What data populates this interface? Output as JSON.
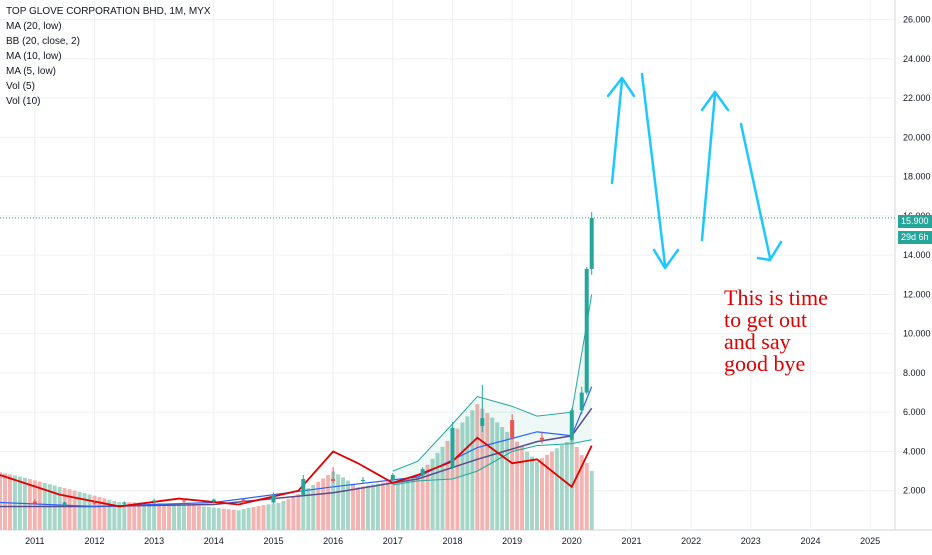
{
  "legend": {
    "title": "TOP GLOVE CORPORATION BHD, 1M, MYX",
    "items": [
      "MA (20, low)",
      "BB (20, close, 2)",
      "MA (10, low)",
      "MA (5, low)",
      "Vol (5)",
      "Vol (10)"
    ]
  },
  "price_axis": {
    "ticks": [
      "2.000",
      "4.000",
      "6.000",
      "8.000",
      "10.000",
      "12.000",
      "14.000",
      "16.000",
      "18.000",
      "20.000",
      "22.000",
      "24.000",
      "26.000"
    ],
    "last_price": "15.900",
    "countdown": "29d 6h"
  },
  "time_axis": {
    "ticks": [
      "2011",
      "2012",
      "2013",
      "2014",
      "2015",
      "2016",
      "2017",
      "2018",
      "2019",
      "2020",
      "2021",
      "2022",
      "2023",
      "2024",
      "2025"
    ]
  },
  "annotation": {
    "lines": [
      "This is time",
      "to get out",
      "and say",
      "good bye"
    ],
    "color": "#e00000"
  },
  "colors": {
    "up": "#26a69a",
    "down": "#ef5350",
    "ma20": "#5b4a8b",
    "ma10": "#2962ff",
    "ma5": "#e00000",
    "bb": "#26a69a",
    "arrows": "#1ec8ff",
    "grid": "#eef0f3"
  },
  "chart_data": {
    "type": "candlestick",
    "title": "TOP GLOVE CORPORATION BHD, 1M, MYX",
    "interval": "1M",
    "ylim": [
      0,
      27
    ],
    "xlim": [
      "2010-06",
      "2025-06"
    ],
    "grid": true,
    "last_close": 15.9,
    "candles": [
      {
        "x": "2011-01",
        "o": 1.45,
        "h": 1.55,
        "l": 1.3,
        "c": 1.35
      },
      {
        "x": "2011-07",
        "o": 1.3,
        "h": 1.45,
        "l": 1.2,
        "c": 1.4
      },
      {
        "x": "2012-01",
        "o": 1.4,
        "h": 1.5,
        "l": 1.3,
        "c": 1.35
      },
      {
        "x": "2012-07",
        "o": 1.35,
        "h": 1.45,
        "l": 1.25,
        "c": 1.4
      },
      {
        "x": "2013-01",
        "o": 1.45,
        "h": 1.6,
        "l": 1.35,
        "c": 1.5
      },
      {
        "x": "2013-07",
        "o": 1.5,
        "h": 1.6,
        "l": 1.35,
        "c": 1.45
      },
      {
        "x": "2014-01",
        "o": 1.45,
        "h": 1.6,
        "l": 1.35,
        "c": 1.55
      },
      {
        "x": "2014-07",
        "o": 1.55,
        "h": 1.6,
        "l": 1.35,
        "c": 1.4
      },
      {
        "x": "2015-01",
        "o": 1.4,
        "h": 1.9,
        "l": 1.35,
        "c": 1.8
      },
      {
        "x": "2015-07",
        "o": 1.8,
        "h": 2.8,
        "l": 1.75,
        "c": 2.6
      },
      {
        "x": "2016-01",
        "o": 2.6,
        "h": 3.2,
        "l": 2.4,
        "c": 2.5
      },
      {
        "x": "2016-07",
        "o": 2.5,
        "h": 2.7,
        "l": 2.4,
        "c": 2.55
      },
      {
        "x": "2017-01",
        "o": 2.55,
        "h": 2.9,
        "l": 2.5,
        "c": 2.8
      },
      {
        "x": "2017-07",
        "o": 2.8,
        "h": 3.2,
        "l": 2.7,
        "c": 3.1
      },
      {
        "x": "2018-01",
        "o": 3.2,
        "h": 5.5,
        "l": 3.1,
        "c": 5.2
      },
      {
        "x": "2018-07",
        "o": 5.3,
        "h": 7.4,
        "l": 5.0,
        "c": 5.7
      },
      {
        "x": "2019-01",
        "o": 5.6,
        "h": 5.9,
        "l": 4.6,
        "c": 4.7
      },
      {
        "x": "2019-07",
        "o": 4.7,
        "h": 5.0,
        "l": 4.4,
        "c": 4.6
      },
      {
        "x": "2020-01",
        "o": 4.6,
        "h": 6.2,
        "l": 4.5,
        "c": 6.1
      },
      {
        "x": "2020-03",
        "o": 6.1,
        "h": 7.3,
        "l": 5.9,
        "c": 7.0
      },
      {
        "x": "2020-04",
        "o": 7.0,
        "h": 13.4,
        "l": 6.9,
        "c": 13.3
      },
      {
        "x": "2020-05",
        "o": 13.3,
        "h": 16.2,
        "l": 13.0,
        "c": 15.9
      }
    ],
    "series": [
      {
        "name": "MA (20, low)",
        "x": [
          "2010-06",
          "2012-01",
          "2014-01",
          "2016-01",
          "2017-06",
          "2018-06",
          "2019-06",
          "2020-01",
          "2020-05"
        ],
        "values": [
          1.2,
          1.2,
          1.3,
          1.9,
          2.6,
          3.6,
          4.5,
          4.8,
          6.2
        ]
      },
      {
        "name": "MA (10, low)",
        "x": [
          "2010-06",
          "2012-01",
          "2014-01",
          "2016-01",
          "2017-06",
          "2018-06",
          "2019-06",
          "2020-01",
          "2020-05"
        ],
        "values": [
          1.4,
          1.2,
          1.4,
          2.2,
          2.7,
          4.2,
          5.0,
          4.8,
          7.3
        ]
      },
      {
        "name": "MA (5, low)",
        "x": [
          "2010-06",
          "2011-06",
          "2012-06",
          "2013-06",
          "2014-06",
          "2015-06",
          "2016-01",
          "2016-06",
          "2017-01",
          "2017-06",
          "2018-01",
          "2018-06",
          "2019-01",
          "2019-06",
          "2020-01",
          "2020-05"
        ],
        "values": [
          2.8,
          1.8,
          1.2,
          1.6,
          1.3,
          2.0,
          4.0,
          3.4,
          2.4,
          2.8,
          3.5,
          4.7,
          3.4,
          3.6,
          2.2,
          4.3
        ]
      }
    ],
    "bollinger": {
      "name": "BB (20, close, 2)",
      "x": [
        "2017-01",
        "2017-06",
        "2018-01",
        "2018-06",
        "2019-01",
        "2019-06",
        "2020-01",
        "2020-05"
      ],
      "upper": [
        3.0,
        3.5,
        5.4,
        6.8,
        6.3,
        5.8,
        6.0,
        12.0
      ],
      "lower": [
        2.3,
        2.5,
        2.6,
        3.0,
        4.0,
        4.3,
        4.4,
        4.6
      ]
    },
    "volume": {
      "x": [
        "2010-06",
        "2011-06",
        "2012-06",
        "2013-06",
        "2014-06",
        "2015-06",
        "2016-01",
        "2016-06",
        "2017-06",
        "2018-06",
        "2019-06",
        "2020-01",
        "2020-05"
      ],
      "values": [
        3.0,
        2.2,
        1.5,
        1.6,
        1.5,
        3.0,
        4.2,
        2.8,
        3.0,
        6.5,
        3.5,
        4.8,
        3.2
      ],
      "color_scale_note": "volume bars drawn at the bottom of the price pane"
    }
  }
}
